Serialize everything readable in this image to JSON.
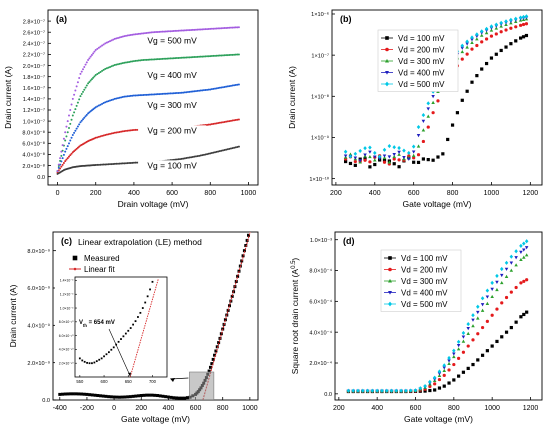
{
  "chart_data": [
    {
      "id": "a",
      "type": "scatter",
      "panel_label": "(a)",
      "xlabel": "Drain voltage (mV)",
      "ylabel": "Drain current (A)",
      "xlim": [
        -50,
        1050
      ],
      "ylim": [
        -1.5e-08,
        3e-07
      ],
      "xticks": [
        0,
        200,
        400,
        600,
        800,
        1000
      ],
      "yticks": [
        0,
        2e-08,
        4e-08,
        6e-08,
        8e-08,
        1e-07,
        1.2e-07,
        1.4e-07,
        1.6e-07,
        1.8e-07,
        2e-07,
        2.2e-07,
        2.4e-07,
        2.6e-07,
        2.8e-07
      ],
      "ytick_labels": [
        "0.0",
        "2.0×10⁻⁸",
        "4.0×10⁻⁸",
        "6.0×10⁻⁸",
        "8.0×10⁻⁸",
        "1.0×10⁻⁷",
        "1.2×10⁻⁷",
        "1.4×10⁻⁷",
        "1.6×10⁻⁷",
        "1.8×10⁻⁷",
        "2.0×10⁻⁷",
        "2.2×10⁻⁷",
        "2.4×10⁻⁷",
        "2.6×10⁻⁷",
        "2.8×10⁻⁷"
      ],
      "x": [
        0,
        40,
        80,
        120,
        160,
        200,
        250,
        300,
        350,
        400,
        450,
        500,
        550,
        600,
        650,
        700,
        750,
        800,
        850,
        900,
        950
      ],
      "series": [
        {
          "label": "Vg = 100 mV",
          "color": "#3c3c3c",
          "values": [
            5e-09,
            1.3e-08,
            1.7e-08,
            1.9e-08,
            2e-08,
            2.1e-08,
            2.2e-08,
            2.3e-08,
            2.4e-08,
            2.5e-08,
            2.6e-08,
            2.7e-08,
            2.8e-08,
            3e-08,
            3.2e-08,
            3.5e-08,
            3.8e-08,
            4.2e-08,
            4.6e-08,
            5e-08,
            5.4e-08
          ]
        },
        {
          "label": "Vg = 200 mV",
          "color": "#d62728",
          "values": [
            8e-09,
            2.8e-08,
            4.4e-08,
            5.6e-08,
            6.4e-08,
            7e-08,
            7.5e-08,
            7.9e-08,
            8.2e-08,
            8.4e-08,
            8.5e-08,
            8.6e-08,
            8.7e-08,
            8.8e-08,
            8.9e-08,
            9e-08,
            9.2e-08,
            9.4e-08,
            9.7e-08,
            1e-07,
            1.03e-07
          ]
        },
        {
          "label": "Vg = 300 mV",
          "color": "#1f5fd6",
          "values": [
            1e-08,
            4.5e-08,
            7.5e-08,
            9.8e-08,
            1.14e-07,
            1.25e-07,
            1.34e-07,
            1.4e-07,
            1.44e-07,
            1.46e-07,
            1.47e-07,
            1.48e-07,
            1.49e-07,
            1.5e-07,
            1.51e-07,
            1.53e-07,
            1.55e-07,
            1.57e-07,
            1.6e-07,
            1.63e-07,
            1.66e-07
          ]
        },
        {
          "label": "Vg = 400 mV",
          "color": "#2ca05a",
          "values": [
            1e-08,
            6.5e-08,
            1.1e-07,
            1.45e-07,
            1.68e-07,
            1.83e-07,
            1.94e-07,
            2.01e-07,
            2.05e-07,
            2.08e-07,
            2.1e-07,
            2.11e-07,
            2.12e-07,
            2.13e-07,
            2.14e-07,
            2.15e-07,
            2.16e-07,
            2.17e-07,
            2.18e-07,
            2.19e-07,
            2.2e-07
          ]
        },
        {
          "label": "Vg = 500 mV",
          "color": "#a35ce0",
          "values": [
            1e-08,
            8e-08,
            1.4e-07,
            1.85e-07,
            2.1e-07,
            2.28e-07,
            2.4e-07,
            2.48e-07,
            2.53e-07,
            2.56e-07,
            2.58e-07,
            2.6e-07,
            2.61e-07,
            2.62e-07,
            2.63e-07,
            2.64e-07,
            2.65e-07,
            2.66e-07,
            2.67e-07,
            2.68e-07,
            2.69e-07
          ]
        }
      ]
    },
    {
      "id": "b",
      "type": "scatter",
      "panel_label": "(b)",
      "xlabel": "Gate voltage (mV)",
      "ylabel": "Drain current (A)",
      "yscale": "log",
      "xlim": [
        180,
        1260
      ],
      "ylim": [
        7e-11,
        1.25e-06
      ],
      "xticks": [
        200,
        400,
        600,
        800,
        1000,
        1200
      ],
      "yticks": [
        1e-10,
        1e-09,
        1e-08,
        1e-07,
        1e-06
      ],
      "ytick_labels": [
        "1×10⁻¹⁰",
        "1×10⁻⁹",
        "1×10⁻⁸",
        "1×10⁻⁷",
        "1×10⁻⁶"
      ],
      "legend_position": "top-left",
      "x": [
        250,
        300,
        350,
        400,
        450,
        500,
        550,
        600,
        650,
        700,
        750,
        800,
        850,
        900,
        950,
        1000,
        1050,
        1100,
        1150,
        1180
      ],
      "series": [
        {
          "label": "Vd = 100 mV",
          "color": "#000000",
          "marker": "square",
          "values": [
            2.6e-10,
            2.1e-10,
            3e-10,
            2.2e-10,
            2.8e-10,
            2.3e-10,
            2.7e-10,
            2.5e-10,
            3e-10,
            2.8e-10,
            4e-10,
            2e-09,
            8e-09,
            2.2e-08,
            4.6e-08,
            8.5e-08,
            1.3e-07,
            1.9e-07,
            2.6e-07,
            3e-07
          ]
        },
        {
          "label": "Vd = 200 mV",
          "color": "#e41a1c",
          "marker": "circle",
          "values": [
            3e-10,
            2.6e-10,
            2.8e-10,
            3.3e-10,
            2.5e-10,
            3e-10,
            2.8e-10,
            3.2e-10,
            8e-10,
            4e-09,
            1.5e-08,
            3.8e-08,
            8e-08,
            1.4e-07,
            2.1e-07,
            2.9e-07,
            3.7e-07,
            4.5e-07,
            5.3e-07,
            5.8e-07
          ]
        },
        {
          "label": "Vd = 300 mV",
          "color": "#2ca02c",
          "marker": "triangle",
          "values": [
            3.3e-10,
            3e-10,
            3.5e-10,
            2.8e-10,
            3.2e-10,
            3.4e-10,
            3e-10,
            3.6e-10,
            1.5e-09,
            7e-09,
            2.4e-08,
            6e-08,
            1.2e-07,
            2e-07,
            3e-07,
            4e-07,
            5e-07,
            6e-07,
            7e-07,
            7.5e-07
          ]
        },
        {
          "label": "Vd = 400 mV",
          "color": "#1f1fbf",
          "marker": "triangle-down",
          "values": [
            3.6e-10,
            3.2e-10,
            3.8e-10,
            3.4e-10,
            3.6e-10,
            3.9e-10,
            3.3e-10,
            4.5e-10,
            2.5e-09,
            1e-08,
            3.2e-08,
            7.5e-08,
            1.5e-07,
            2.4e-07,
            3.5e-07,
            4.6e-07,
            5.7e-07,
            6.7e-07,
            7.7e-07,
            8.2e-07
          ]
        },
        {
          "label": "Vd = 500 mV",
          "color": "#00c8e6",
          "marker": "diamond",
          "values": [
            4.5e-10,
            4e-10,
            5.5e-10,
            4.2e-10,
            5e-10,
            5.8e-10,
            4.8e-10,
            6e-10,
            3.5e-09,
            1.3e-08,
            4e-08,
            9e-08,
            1.7e-07,
            2.7e-07,
            3.8e-07,
            5e-07,
            6.1e-07,
            7.2e-07,
            8.2e-07,
            8.8e-07
          ]
        }
      ]
    },
    {
      "id": "c",
      "type": "scatter",
      "panel_label": "(c)",
      "title": "Linear extrapolation (LE) method",
      "xlabel": "Gate voltage (mV)",
      "ylabel": "Drain current (A)",
      "xlim": [
        -450,
        1060
      ],
      "ylim": [
        0,
        9e-09
      ],
      "xticks": [
        -400,
        -200,
        0,
        200,
        400,
        600,
        800,
        1000
      ],
      "yticks": [
        0,
        2e-09,
        4e-09,
        6e-09,
        8e-09
      ],
      "ytick_labels": [
        "0.0",
        "2.0×10⁻⁹",
        "4.0×10⁻⁹",
        "6.0×10⁻⁹",
        "8.0×10⁻⁹"
      ],
      "annotation": "V_d = 10 mV",
      "legend": [
        {
          "label": "Measured",
          "color": "#000000",
          "marker": "square"
        },
        {
          "label": "Linear fit",
          "color": "#d62728",
          "marker": "line"
        }
      ],
      "series": [
        {
          "label": "Measured",
          "color": "#000000",
          "x": [
            -400,
            -360,
            -320,
            -280,
            -240,
            -200,
            -160,
            -120,
            -80,
            -40,
            0,
            40,
            80,
            120,
            160,
            200,
            240,
            280,
            320,
            360,
            400,
            440,
            480,
            520,
            560,
            600,
            620,
            640,
            660,
            680,
            700,
            720,
            740,
            760,
            780,
            800,
            820,
            840,
            860,
            880,
            900,
            920,
            940,
            960,
            980,
            1000
          ],
          "values": [
            3e-10,
            3.2e-10,
            3.3e-10,
            3.3e-10,
            3.2e-10,
            3e-10,
            2.7e-10,
            2.4e-10,
            2.1e-10,
            1.8e-10,
            1.6e-10,
            1.5e-10,
            1.6e-10,
            1.8e-10,
            2.1e-10,
            2.4e-10,
            2.6e-10,
            2.6e-10,
            2.4e-10,
            2e-10,
            1.6e-10,
            1.2e-10,
            1e-10,
            1e-10,
            1.5e-10,
            3e-10,
            4.5e-10,
            6.5e-10,
            9e-10,
            1.2e-09,
            1.55e-09,
            1.95e-09,
            2.4e-09,
            2.85e-09,
            3.3e-09,
            3.8e-09,
            4.3e-09,
            4.8e-09,
            5.3e-09,
            5.8e-09,
            6.35e-09,
            6.9e-09,
            7.45e-09,
            8e-09,
            8.55e-09,
            9.1e-09
          ]
        },
        {
          "label": "Linear fit",
          "color": "#d62728",
          "x": [
            654,
            1010
          ],
          "values": [
            0,
            9.2e-09
          ]
        }
      ],
      "inset": {
        "xlim": [
          540,
          730
        ],
        "ylim": [
          0,
          1.45e-09
        ],
        "xticks": [
          550,
          600,
          650,
          700
        ],
        "yticks": [
          2e-10,
          4e-10,
          6e-10,
          8e-10,
          1e-09,
          1.2e-09,
          1.4e-09
        ],
        "ytick_labels": [
          "2.0×10⁻¹⁰",
          "4.0×10⁻¹⁰",
          "6.0×10⁻¹⁰",
          "8.0×10⁻¹⁰",
          "1.0×10⁻⁹",
          "1.2×10⁻⁹",
          "1.4×10⁻⁹"
        ],
        "annotation": "V_th = 654 mV",
        "x": [
          550,
          555,
          560,
          565,
          570,
          575,
          580,
          585,
          590,
          595,
          600,
          605,
          610,
          615,
          620,
          625,
          630,
          635,
          640,
          645,
          650,
          655,
          660,
          665,
          670,
          675,
          680,
          685,
          690,
          695,
          700
        ],
        "values": [
          2.7e-10,
          2.4e-10,
          2.2e-10,
          2.05e-10,
          2e-10,
          2e-10,
          2.1e-10,
          2.3e-10,
          2.5e-10,
          2.7e-10,
          3e-10,
          3.3e-10,
          3.6e-10,
          3.95e-10,
          4.3e-10,
          4.7e-10,
          5.1e-10,
          5.5e-10,
          5.9e-10,
          6.3e-10,
          6.7e-10,
          7.1e-10,
          7.6e-10,
          8.1e-10,
          8.7e-10,
          9.3e-10,
          1e-09,
          1.08e-09,
          1.17e-09,
          1.27e-09,
          1.38e-09
        ],
        "fit": {
          "x": [
            654,
            712
          ],
          "values": [
            0,
            1.42e-09
          ]
        }
      }
    },
    {
      "id": "d",
      "type": "scatter",
      "panel_label": "(d)",
      "xlabel": "Gate voltage (mV)",
      "ylabel": "Square root drain current (A^0.5)",
      "xlim": [
        180,
        1260
      ],
      "ylim": [
        -4e-05,
        0.00105
      ],
      "xticks": [
        200,
        400,
        600,
        800,
        1000,
        1200
      ],
      "yticks": [
        0,
        0.0002,
        0.0004,
        0.0006,
        0.0008,
        0.001
      ],
      "ytick_labels": [
        "0.0",
        "2.0×10⁻⁴",
        "4.0×10⁻⁴",
        "6.0×10⁻⁴",
        "8.0×10⁻⁴",
        "1.0×10⁻³"
      ],
      "legend_position": "top-left",
      "x": [
        250,
        300,
        350,
        400,
        450,
        500,
        550,
        600,
        650,
        700,
        750,
        800,
        850,
        900,
        950,
        1000,
        1050,
        1100,
        1150,
        1180
      ],
      "series": [
        {
          "label": "Vd = 100 mV",
          "color": "#000000",
          "marker": "square",
          "values": [
            1.5e-05,
            1.5e-05,
            1.5e-05,
            1.5e-05,
            1.5e-05,
            1.5e-05,
            1.5e-05,
            1.6e-05,
            1.8e-05,
            2.5e-05,
            5e-05,
            9e-05,
            0.00014,
            0.00019,
            0.00025,
            0.00031,
            0.00037,
            0.00043,
            0.0005,
            0.00053
          ]
        },
        {
          "label": "Vd = 200 mV",
          "color": "#e41a1c",
          "marker": "circle",
          "values": [
            1.7e-05,
            1.7e-05,
            1.7e-05,
            1.7e-05,
            1.7e-05,
            1.7e-05,
            1.7e-05,
            1.8e-05,
            3e-05,
            6.5e-05,
            0.00012,
            0.00019,
            0.00027,
            0.00035,
            0.00043,
            0.00051,
            0.00059,
            0.00066,
            0.00072,
            0.00074
          ]
        },
        {
          "label": "Vd = 300 mV",
          "color": "#2ca02c",
          "marker": "triangle",
          "values": [
            1.8e-05,
            1.8e-05,
            1.8e-05,
            1.8e-05,
            1.8e-05,
            1.8e-05,
            1.8e-05,
            2e-05,
            4e-05,
            8.5e-05,
            0.00015,
            0.00024,
            0.00034,
            0.00044,
            0.00054,
            0.00063,
            0.00072,
            0.0008,
            0.00087,
            0.0009
          ]
        },
        {
          "label": "Vd = 400 mV",
          "color": "#1f1fbf",
          "marker": "triangle-down",
          "values": [
            1.9e-05,
            1.9e-05,
            1.9e-05,
            1.9e-05,
            1.9e-05,
            1.9e-05,
            1.9e-05,
            2.1e-05,
            4.5e-05,
            9.5e-05,
            0.00017,
            0.00026,
            0.00037,
            0.00048,
            0.00058,
            0.00068,
            0.00077,
            0.00085,
            0.00092,
            0.00095
          ]
        },
        {
          "label": "Vd = 500 mV",
          "color": "#00c8e6",
          "marker": "diamond",
          "values": [
            2e-05,
            2e-05,
            2e-05,
            2e-05,
            2e-05,
            2e-05,
            2e-05,
            2.3e-05,
            5e-05,
            0.000105,
            0.000185,
            0.00028,
            0.000395,
            0.00051,
            0.00062,
            0.00072,
            0.00081,
            0.00089,
            0.00096,
            0.00099
          ]
        }
      ]
    }
  ]
}
